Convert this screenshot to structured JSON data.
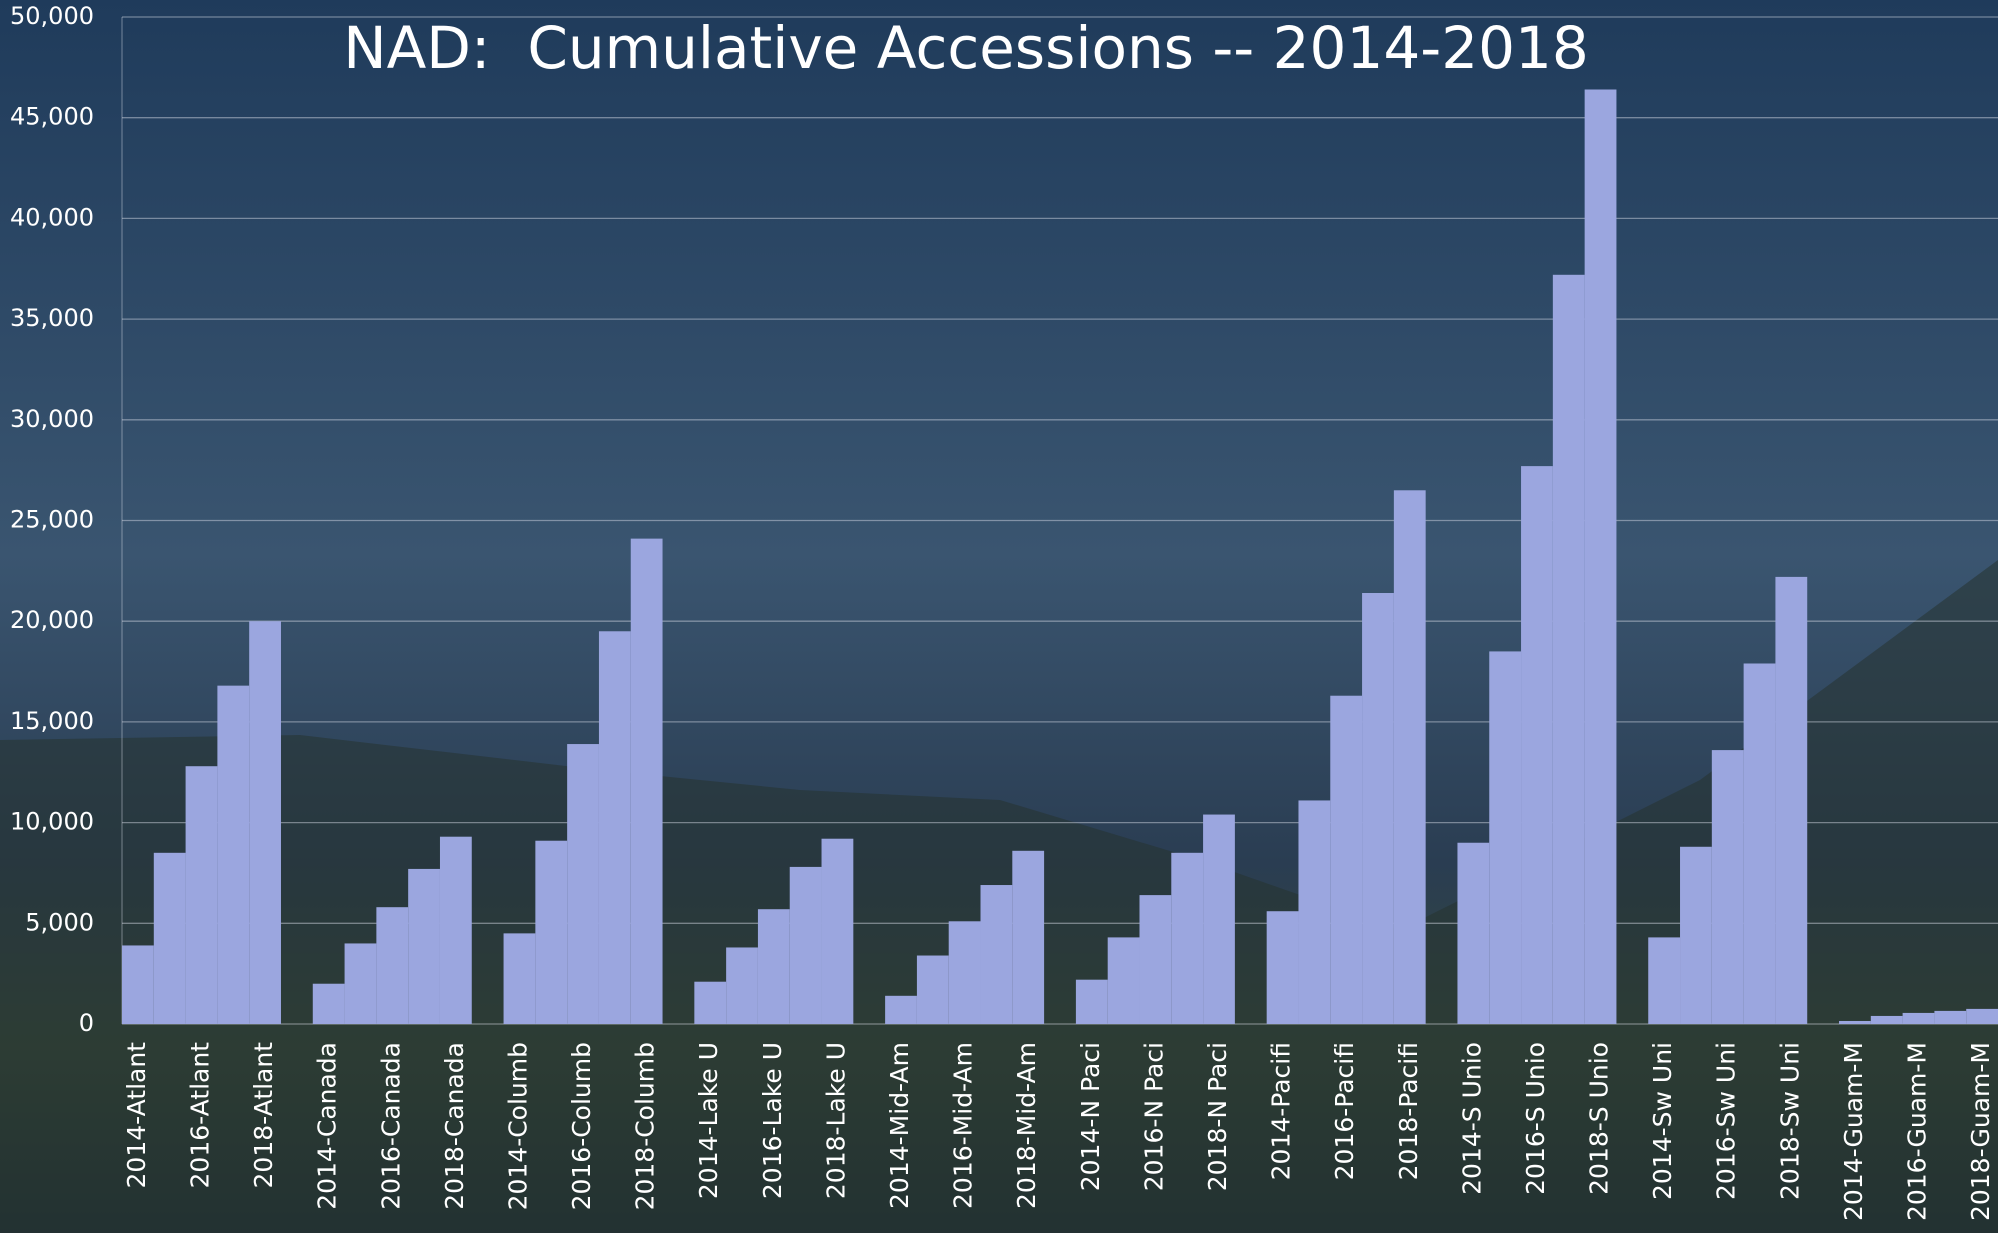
{
  "chart_data": {
    "type": "bar",
    "title": "NAD:  Cumulative Accessions -- 2014-2018",
    "categories": [
      "2014-Atlant",
      null,
      "2016-Atlant",
      null,
      "2018-Atlant",
      null,
      "2014-Canada",
      null,
      "2016-Canada",
      null,
      "2018-Canada",
      null,
      "2014-Columb",
      null,
      "2016-Columb",
      null,
      "2018-Columb",
      null,
      "2014-Lake U",
      null,
      "2016-Lake U",
      null,
      "2018-Lake U",
      null,
      "2014-Mid-Am",
      null,
      "2016-Mid-Am",
      null,
      "2018-Mid-Am",
      null,
      "2014-N Paci",
      null,
      "2016-N Paci",
      null,
      "2018-N Paci",
      null,
      "2014-Pacifi",
      null,
      "2016-Pacifi",
      null,
      "2018-Pacifi",
      null,
      "2014-S Unio",
      null,
      "2016-S Unio",
      null,
      "2018-S Unio",
      null,
      "2014-Sw Uni",
      null,
      "2016-Sw Uni",
      null,
      "2018-Sw Uni",
      null,
      "2014-Guam-M",
      null,
      "2016-Guam-M",
      null,
      "2018-Guam-M"
    ],
    "values": [
      3900,
      8500,
      12800,
      16800,
      20000,
      null,
      2000,
      4000,
      5800,
      7700,
      9300,
      null,
      4500,
      9100,
      13900,
      19500,
      24100,
      null,
      2100,
      3800,
      5700,
      7800,
      9200,
      null,
      1400,
      3400,
      5100,
      6900,
      8600,
      null,
      2200,
      4300,
      6400,
      8500,
      10400,
      null,
      5600,
      11100,
      16300,
      21400,
      26500,
      null,
      9000,
      18500,
      27700,
      37200,
      46400,
      null,
      4300,
      8800,
      13600,
      17900,
      22200,
      null,
      150,
      400,
      550,
      650,
      750
    ],
    "color": "#9ba6df",
    "ylim": [
      0,
      50000
    ],
    "yticks": [
      0,
      {
        "value": 5000,
        "label": "5,000"
      },
      {
        "value": 10000,
        "label": "10,000"
      },
      {
        "value": 15000,
        "label": "15,000"
      },
      {
        "value": 20000,
        "label": "20,000"
      },
      {
        "value": 25000,
        "label": "25,000"
      },
      {
        "value": 30000,
        "label": "30,000"
      },
      {
        "value": 35000,
        "label": "35,000"
      },
      {
        "value": 40000,
        "label": "40,000"
      },
      {
        "value": 45000,
        "label": "45,000"
      },
      {
        "value": 50000,
        "label": "50,000"
      }
    ],
    "grid": true
  }
}
